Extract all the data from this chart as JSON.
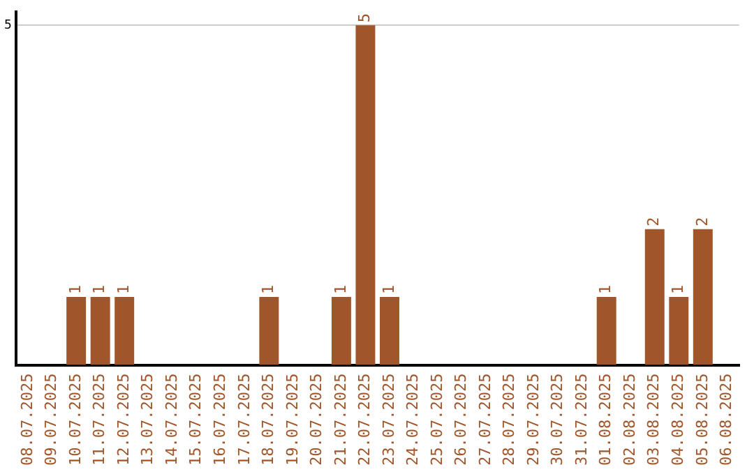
{
  "chart_data": {
    "type": "bar",
    "categories": [
      "08.07.2025",
      "09.07.2025",
      "10.07.2025",
      "11.07.2025",
      "12.07.2025",
      "13.07.2025",
      "14.07.2025",
      "15.07.2025",
      "16.07.2025",
      "17.07.2025",
      "18.07.2025",
      "19.07.2025",
      "20.07.2025",
      "21.07.2025",
      "22.07.2025",
      "23.07.2025",
      "24.07.2025",
      "25.07.2025",
      "26.07.2025",
      "27.07.2025",
      "28.07.2025",
      "29.07.2025",
      "30.07.2025",
      "31.07.2025",
      "01.08.2025",
      "02.08.2025",
      "03.08.2025",
      "04.08.2025",
      "05.08.2025",
      "06.08.2025"
    ],
    "values": [
      0,
      0,
      1,
      1,
      1,
      0,
      0,
      0,
      0,
      0,
      1,
      0,
      0,
      1,
      5,
      1,
      0,
      0,
      0,
      0,
      0,
      0,
      0,
      0,
      1,
      0,
      2,
      1,
      2,
      0
    ],
    "value_labels": [
      null,
      null,
      "1",
      "1",
      "1",
      null,
      null,
      null,
      null,
      null,
      "1",
      null,
      null,
      "1",
      "5",
      "1",
      null,
      null,
      null,
      null,
      null,
      null,
      null,
      null,
      "1",
      null,
      "2",
      "1",
      "2",
      null
    ],
    "color": "#a0562a",
    "ylim": [
      0,
      5.2
    ],
    "yticks": [
      5
    ],
    "grid": "y",
    "legend": false
  }
}
